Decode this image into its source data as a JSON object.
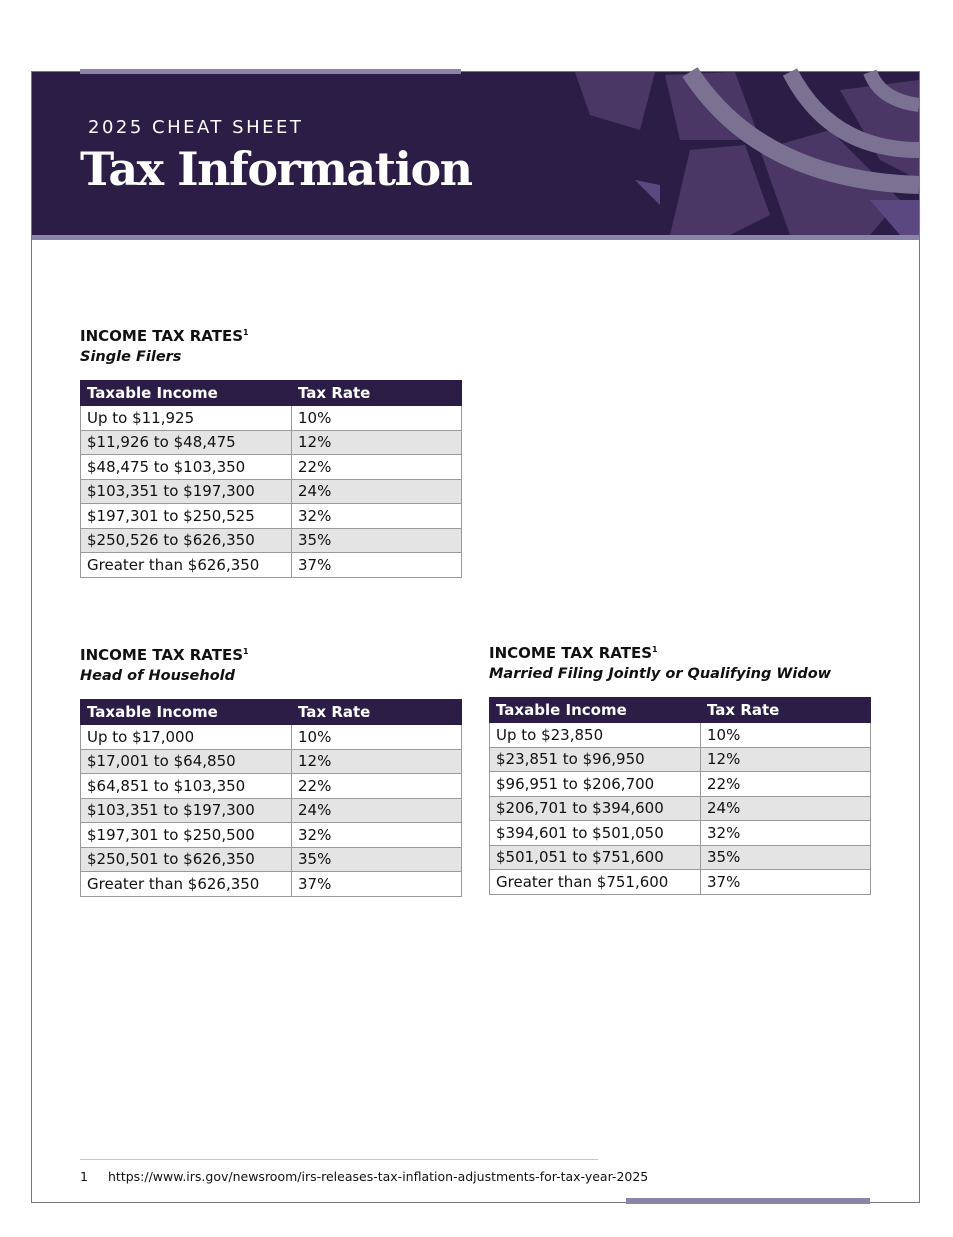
{
  "header": {
    "eyebrow": "2025 CHEAT SHEET",
    "title": "Tax Information"
  },
  "tables": [
    {
      "heading": "INCOME TAX RATES",
      "note_ref": "1",
      "subheading": "Single Filers",
      "columns": [
        "Taxable Income",
        "Tax Rate"
      ],
      "rows": [
        [
          "Up to $11,925",
          "10%"
        ],
        [
          "$11,926 to $48,475",
          "12%"
        ],
        [
          "$48,475 to $103,350",
          "22%"
        ],
        [
          "$103,351 to $197,300",
          "24%"
        ],
        [
          "$197,301 to $250,525",
          "32%"
        ],
        [
          "$250,526 to $626,350",
          "35%"
        ],
        [
          "Greater than $626,350",
          "37%"
        ]
      ]
    },
    {
      "heading": "INCOME TAX RATES",
      "note_ref": "1",
      "subheading": "Head of Household",
      "columns": [
        "Taxable Income",
        "Tax Rate"
      ],
      "rows": [
        [
          "Up to $17,000",
          "10%"
        ],
        [
          "$17,001 to $64,850",
          "12%"
        ],
        [
          "$64,851 to $103,350",
          "22%"
        ],
        [
          "$103,351 to $197,300",
          "24%"
        ],
        [
          "$197,301 to $250,500",
          "32%"
        ],
        [
          "$250,501 to $626,350",
          "35%"
        ],
        [
          "Greater than $626,350",
          "37%"
        ]
      ]
    },
    {
      "heading": "INCOME TAX RATES",
      "note_ref": "1",
      "subheading": "Married Filing Jointly or Qualifying Widow",
      "columns": [
        "Taxable Income",
        "Tax Rate"
      ],
      "rows": [
        [
          "Up to $23,850",
          "10%"
        ],
        [
          "$23,851 to $96,950",
          "12%"
        ],
        [
          "$96,951 to $206,700",
          "22%"
        ],
        [
          "$206,701 to $394,600",
          "24%"
        ],
        [
          "$394,601 to $501,050",
          "32%"
        ],
        [
          "$501,051 to $751,600",
          "35%"
        ],
        [
          "Greater than $751,600",
          "37%"
        ]
      ]
    }
  ],
  "footnote": {
    "number": "1",
    "text": "https://www.irs.gov/newsroom/irs-releases-tax-inflation-adjustments-for-tax-year-2025"
  }
}
